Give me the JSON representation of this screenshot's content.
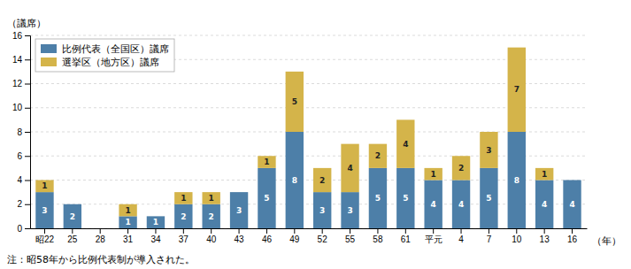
{
  "chart_data": {
    "type": "bar",
    "stacked": true,
    "categories": [
      "昭22",
      "25",
      "28",
      "31",
      "34",
      "37",
      "40",
      "43",
      "46",
      "49",
      "52",
      "55",
      "58",
      "61",
      "平元",
      "4",
      "7",
      "10",
      "13",
      "16"
    ],
    "series": [
      {
        "name": "比例代表（全国区）議席",
        "color": "#4d7fa8",
        "values": [
          3,
          2,
          0,
          1,
          1,
          2,
          2,
          3,
          5,
          8,
          3,
          3,
          5,
          5,
          4,
          4,
          5,
          8,
          4,
          4
        ]
      },
      {
        "name": "選挙区（地方区）議席",
        "color": "#d4b44a",
        "values": [
          1,
          0,
          0,
          1,
          0,
          1,
          1,
          0,
          1,
          5,
          2,
          4,
          2,
          4,
          1,
          2,
          3,
          7,
          1,
          0
        ]
      }
    ],
    "y_label": "（議席）",
    "x_label": "（年）",
    "footnote": "注：昭58年から比例代表制が導入された。",
    "ylim": [
      0,
      16
    ],
    "yticks": [
      0,
      2,
      4,
      6,
      8,
      10,
      12,
      14,
      16
    ],
    "grid": true,
    "legend": "upper-left",
    "data_labels": true
  }
}
